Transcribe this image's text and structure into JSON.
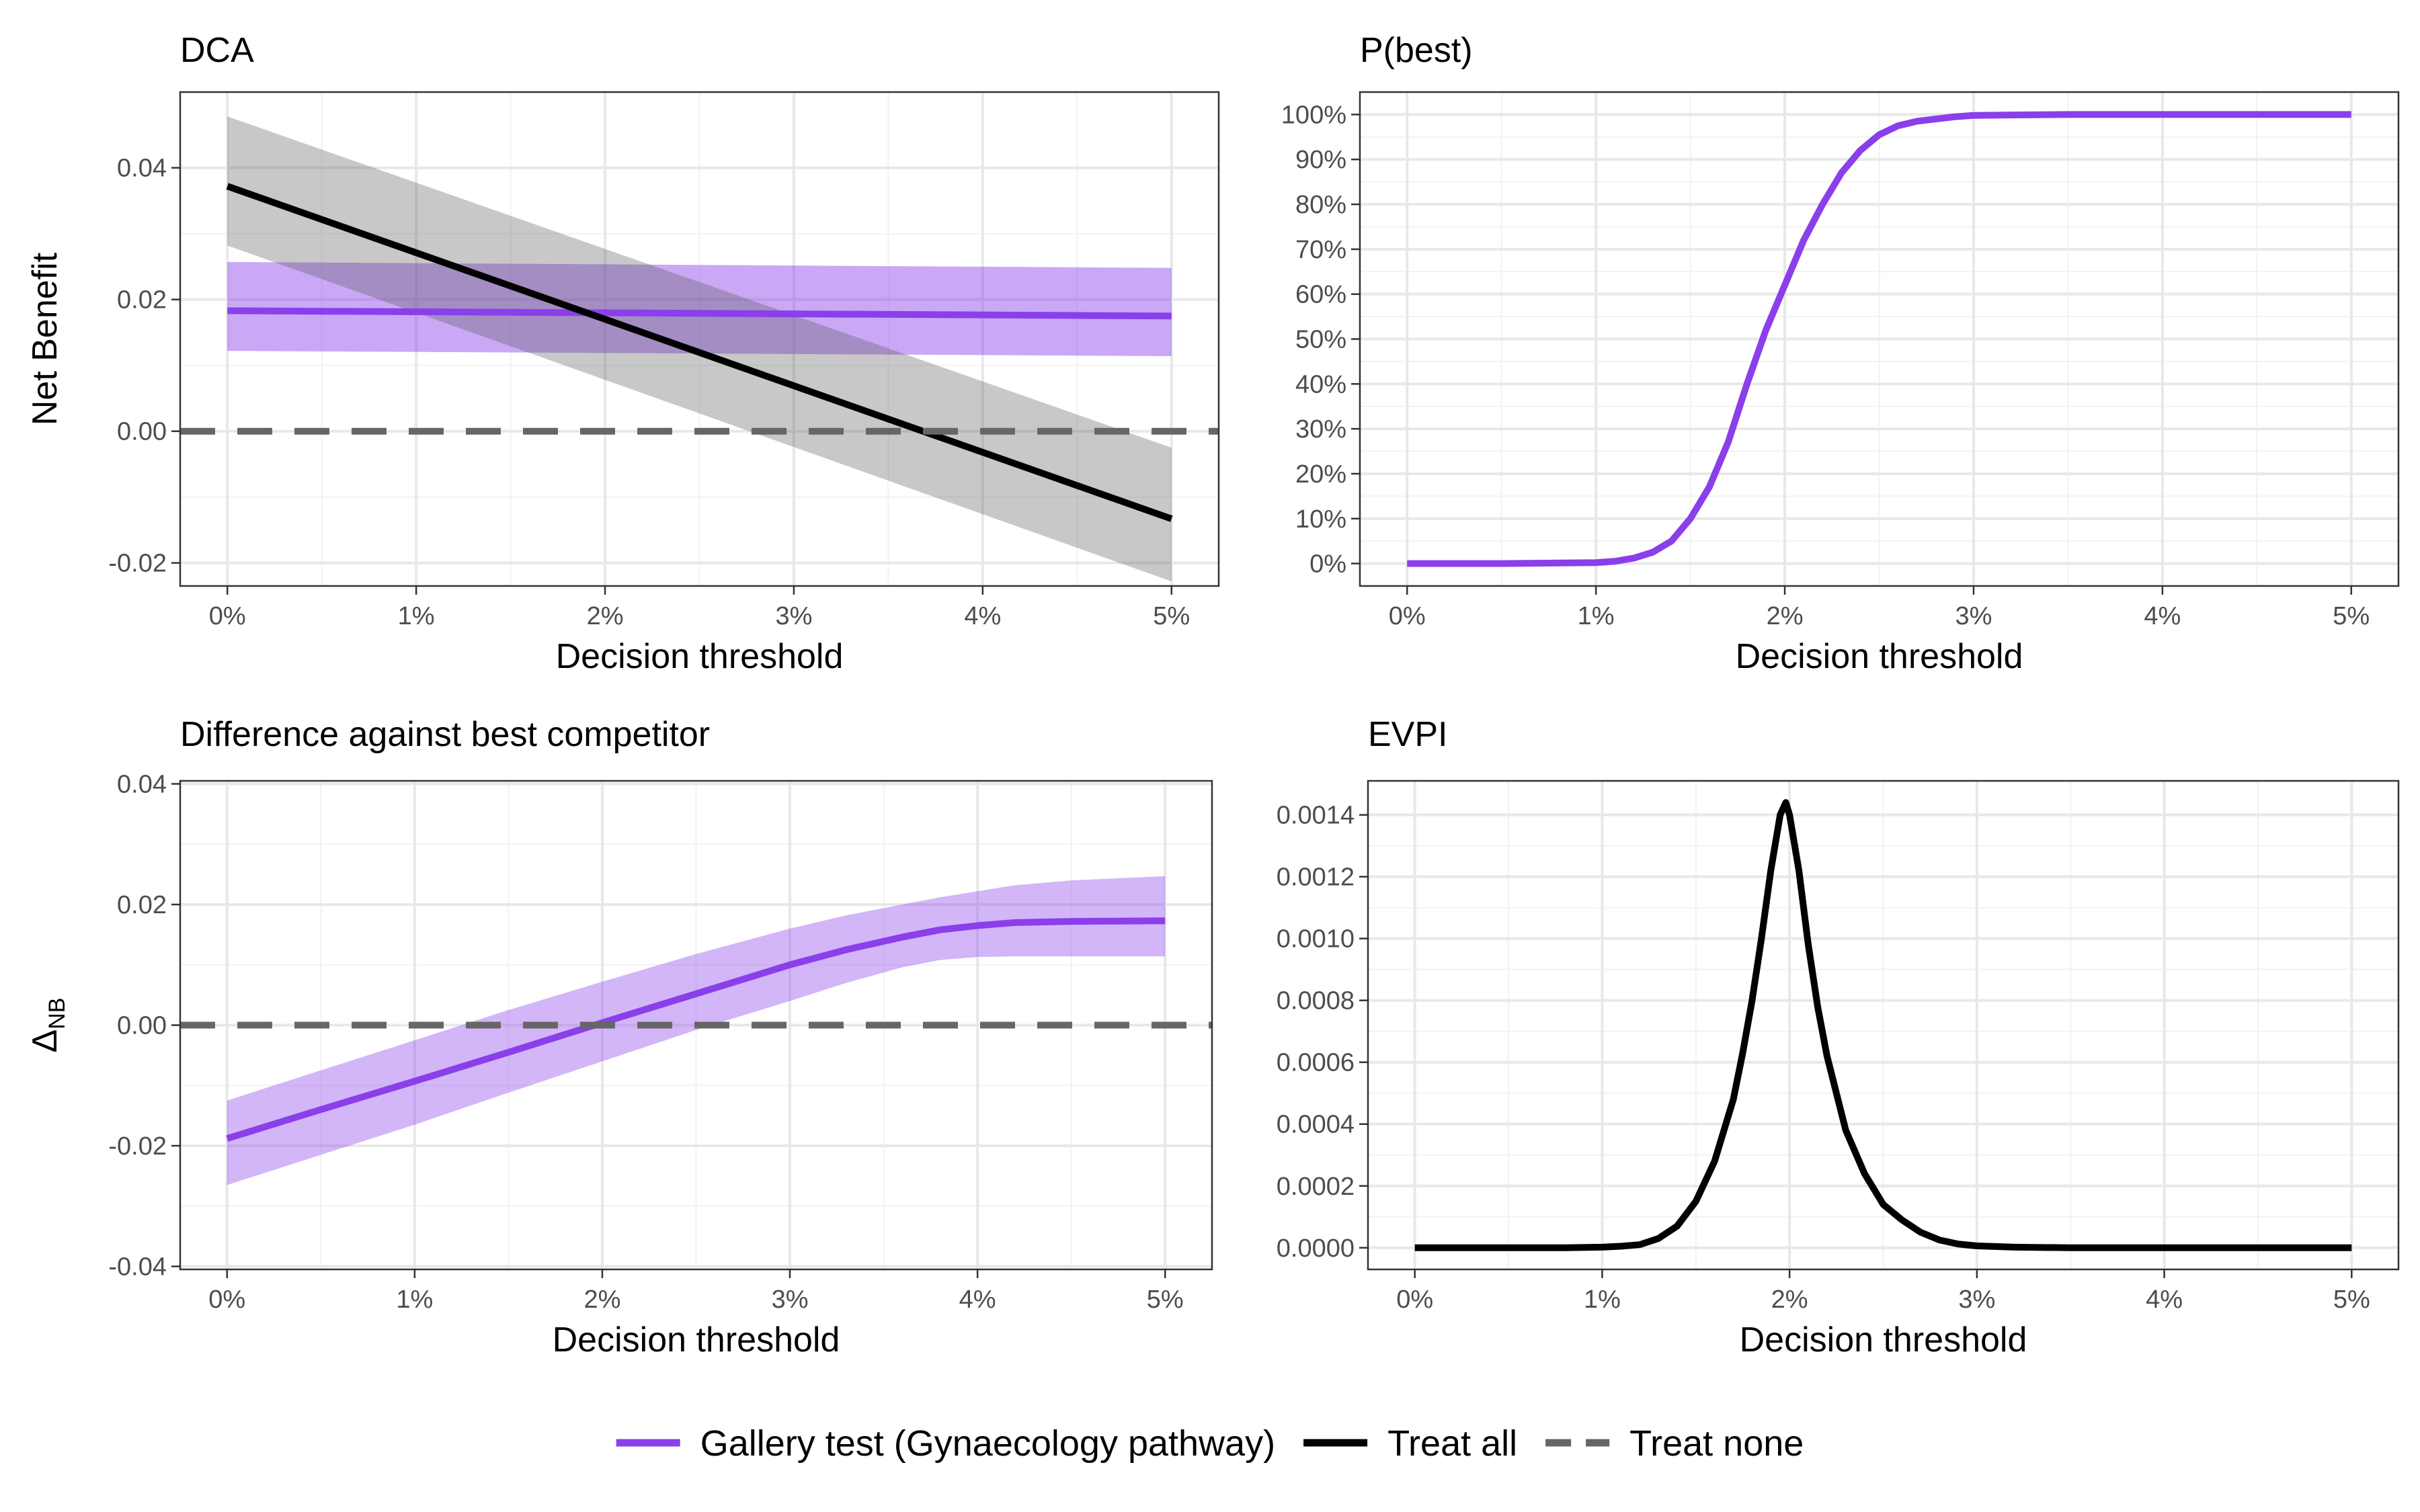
{
  "legend": {
    "items": [
      {
        "label": "Gallery test (Gynaecology pathway)",
        "color": "#8A3FEA",
        "style": "solid"
      },
      {
        "label": "Treat all",
        "color": "#000000",
        "style": "solid"
      },
      {
        "label": "Treat none",
        "color": "#666666",
        "style": "dashed"
      }
    ]
  },
  "chart_data": [
    {
      "id": "dca",
      "type": "line",
      "title": "DCA",
      "xlabel": "Decision threshold",
      "ylabel": "Net Benefit",
      "xlim": [
        -0.25,
        5.25
      ],
      "ylim": [
        -0.0235,
        0.0515
      ],
      "x_ticks": [
        0,
        1,
        2,
        3,
        4,
        5
      ],
      "x_tick_labels": [
        "0%",
        "1%",
        "2%",
        "3%",
        "4%",
        "5%"
      ],
      "y_ticks": [
        -0.02,
        0,
        0.02,
        0.04
      ],
      "y_tick_labels": [
        "-0.02",
        "0.00",
        "0.02",
        "0.04"
      ],
      "grid": true,
      "series": [
        {
          "name": "Gallery test (Gynaecology pathway)",
          "color": "#8A3FEA",
          "x": [
            0,
            5
          ],
          "y": [
            0.0183,
            0.0175
          ],
          "band_lower": [
            0.0122,
            0.0114
          ],
          "band_upper": [
            0.0257,
            0.0248
          ],
          "band_color": "#8A3FEA",
          "band_opacity": 0.45
        },
        {
          "name": "Treat all",
          "color": "#000000",
          "x": [
            0,
            5
          ],
          "y": [
            0.0372,
            -0.0133
          ],
          "band_lower": [
            0.0282,
            -0.0228
          ],
          "band_upper": [
            0.0478,
            -0.0025
          ],
          "band_color": "#555555",
          "band_opacity": 0.32
        },
        {
          "name": "Treat none",
          "color": "#666666",
          "dashed": true,
          "x": [
            -0.25,
            5.25
          ],
          "y": [
            0,
            0
          ]
        }
      ]
    },
    {
      "id": "pbest",
      "type": "line",
      "title": "P(best)",
      "xlabel": "Decision threshold",
      "ylabel": "",
      "xlim": [
        -0.25,
        5.25
      ],
      "ylim": [
        -0.05,
        1.05
      ],
      "x_ticks": [
        0,
        1,
        2,
        3,
        4,
        5
      ],
      "x_tick_labels": [
        "0%",
        "1%",
        "2%",
        "3%",
        "4%",
        "5%"
      ],
      "y_ticks": [
        0,
        0.1,
        0.2,
        0.3,
        0.4,
        0.5,
        0.6,
        0.7,
        0.8,
        0.9,
        1.0
      ],
      "y_tick_labels": [
        "0%",
        "10%",
        "20%",
        "30%",
        "40%",
        "50%",
        "60%",
        "70%",
        "80%",
        "90%",
        "100%"
      ],
      "grid": true,
      "series": [
        {
          "name": "Gallery test (Gynaecology pathway)",
          "color": "#8A3FEA",
          "x": [
            0,
            0.5,
            1.0,
            1.1,
            1.2,
            1.3,
            1.4,
            1.5,
            1.6,
            1.7,
            1.8,
            1.9,
            2.0,
            2.1,
            2.2,
            2.3,
            2.4,
            2.5,
            2.6,
            2.7,
            2.8,
            2.9,
            3.0,
            3.2,
            3.5,
            4.0,
            5.0
          ],
          "y": [
            0,
            0,
            0.002,
            0.005,
            0.012,
            0.025,
            0.05,
            0.1,
            0.17,
            0.27,
            0.4,
            0.52,
            0.62,
            0.72,
            0.8,
            0.87,
            0.92,
            0.955,
            0.975,
            0.985,
            0.99,
            0.995,
            0.998,
            0.999,
            1.0,
            1.0,
            1.0
          ]
        }
      ]
    },
    {
      "id": "diff",
      "type": "line",
      "title": "Difference against best competitor",
      "xlabel": "Decision threshold",
      "ylabel": "Δ",
      "ylabel_subscript": "NB",
      "xlim": [
        -0.25,
        5.25
      ],
      "ylim": [
        -0.0405,
        0.0405
      ],
      "x_ticks": [
        0,
        1,
        2,
        3,
        4,
        5
      ],
      "x_tick_labels": [
        "0%",
        "1%",
        "2%",
        "3%",
        "4%",
        "5%"
      ],
      "y_ticks": [
        -0.04,
        -0.02,
        0,
        0.02,
        0.04
      ],
      "y_tick_labels": [
        "-0.04",
        "-0.02",
        "0.00",
        "0.02",
        "0.04"
      ],
      "grid": true,
      "series": [
        {
          "name": "Gallery test (Gynaecology pathway)",
          "color": "#8A3FEA",
          "x": [
            0,
            0.5,
            1.0,
            1.5,
            2.0,
            2.5,
            3.0,
            3.3,
            3.6,
            3.8,
            4.0,
            4.2,
            4.5,
            5.0
          ],
          "y": [
            -0.0188,
            -0.014,
            -0.0093,
            -0.0045,
            0.0004,
            0.0052,
            0.01,
            0.0125,
            0.0146,
            0.0158,
            0.0165,
            0.017,
            0.0172,
            0.0173
          ],
          "band_lower": [
            -0.0265,
            -0.0215,
            -0.0165,
            -0.0112,
            -0.006,
            -0.0008,
            0.004,
            0.007,
            0.0096,
            0.0108,
            0.0113,
            0.0114,
            0.0114,
            0.0114
          ],
          "band_upper": [
            -0.0125,
            -0.0075,
            -0.0025,
            0.0025,
            0.0072,
            0.0118,
            0.016,
            0.0182,
            0.02,
            0.0212,
            0.0222,
            0.0232,
            0.024,
            0.0247
          ],
          "band_color": "#8A3FEA",
          "band_opacity": 0.38
        },
        {
          "name": "Treat none",
          "color": "#666666",
          "dashed": true,
          "x": [
            -0.25,
            5.25
          ],
          "y": [
            0,
            0
          ]
        }
      ]
    },
    {
      "id": "evpi",
      "type": "line",
      "title": "EVPI",
      "xlabel": "Decision threshold",
      "ylabel": "",
      "xlim": [
        -0.25,
        5.25
      ],
      "ylim": [
        -7e-05,
        0.00151
      ],
      "x_ticks": [
        0,
        1,
        2,
        3,
        4,
        5
      ],
      "x_tick_labels": [
        "0%",
        "1%",
        "2%",
        "3%",
        "4%",
        "5%"
      ],
      "y_ticks": [
        0,
        0.0002,
        0.0004,
        0.0006,
        0.0008,
        0.001,
        0.0012,
        0.0014
      ],
      "y_tick_labels": [
        "0.0000",
        "0.0002",
        "0.0004",
        "0.0006",
        "0.0008",
        "0.0010",
        "0.0012",
        "0.0014"
      ],
      "grid": true,
      "series": [
        {
          "name": "Treat all",
          "color": "#000000",
          "x": [
            0,
            0.8,
            1.0,
            1.1,
            1.2,
            1.3,
            1.4,
            1.5,
            1.6,
            1.7,
            1.75,
            1.8,
            1.85,
            1.9,
            1.95,
            1.98,
            2.0,
            2.05,
            2.1,
            2.15,
            2.2,
            2.3,
            2.4,
            2.5,
            2.6,
            2.7,
            2.8,
            2.9,
            3.0,
            3.2,
            3.5,
            4.0,
            5.0
          ],
          "y": [
            0,
            0,
            2e-06,
            5e-06,
            1e-05,
            3e-05,
            7e-05,
            0.00015,
            0.00028,
            0.00048,
            0.00063,
            0.0008,
            0.001,
            0.00122,
            0.0014,
            0.00144,
            0.0014,
            0.00122,
            0.00098,
            0.00078,
            0.00062,
            0.00038,
            0.00024,
            0.00014,
            9e-05,
            5e-05,
            2.5e-05,
            1.2e-05,
            6e-06,
            2e-06,
            0,
            0,
            0
          ]
        }
      ]
    }
  ]
}
